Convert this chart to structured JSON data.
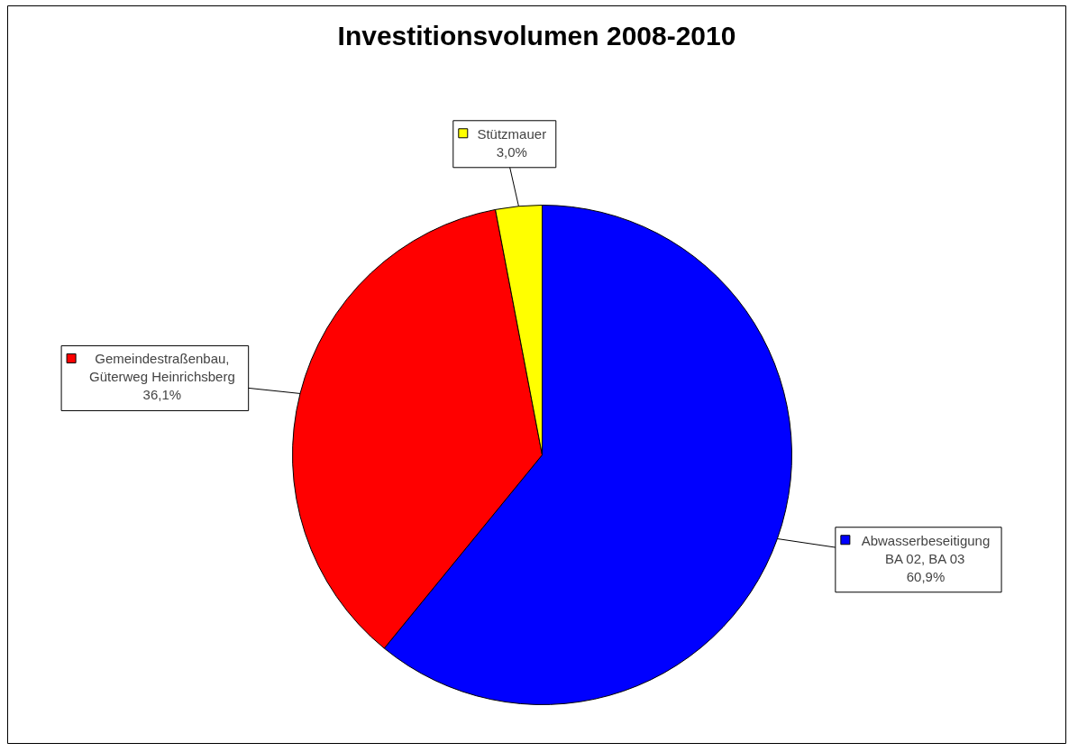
{
  "chart_data": {
    "type": "pie",
    "title": "Investitionsvolumen 2008-2010",
    "categories": [
      "Abwasserbeseitigung\nBA 02, BA 03",
      "Gemeindestraßenbau,\nGüterweg Heinrichsberg",
      "Stützmauer"
    ],
    "values": [
      60.9,
      36.1,
      3.0
    ],
    "colors": [
      "#0000ff",
      "#ff0000",
      "#ffff00"
    ],
    "value_labels": [
      "60,9%",
      "36,1%",
      "3,0%"
    ],
    "legend": true
  }
}
